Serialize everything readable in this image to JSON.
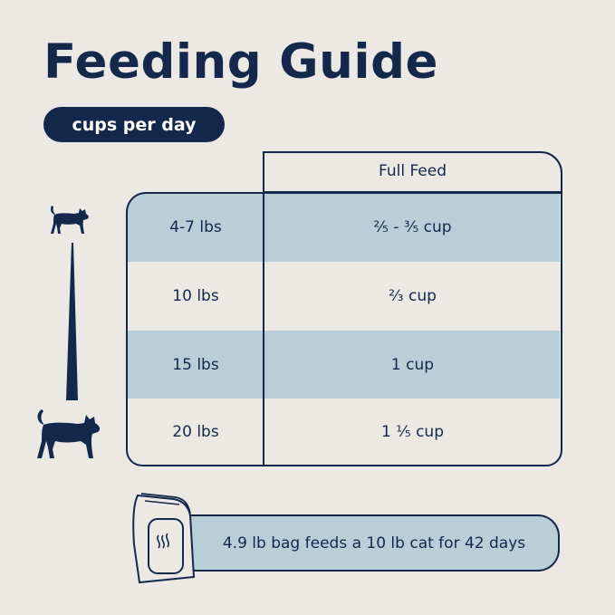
{
  "title": "Feeding Guide",
  "unit_badge": "cups per day",
  "table": {
    "column_header": "Full Feed",
    "rows": [
      {
        "weight": "4-7 lbs",
        "amount": "²⁄₅ - ³⁄₅ cup"
      },
      {
        "weight": "10 lbs",
        "amount": "²⁄₃ cup"
      },
      {
        "weight": "15 lbs",
        "amount": "1 cup"
      },
      {
        "weight": "20 lbs",
        "amount": "1 ¹⁄₅ cup"
      }
    ]
  },
  "bag_fact": "4.9 lb bag feeds a 10 lb cat for 42 days",
  "colors": {
    "navy": "#13284a",
    "light_blue": "#b9cfd8",
    "background": "#ece8e4"
  },
  "icons": [
    "small-cat-icon",
    "size-scale-triangle",
    "large-cat-icon",
    "food-bag-icon"
  ]
}
